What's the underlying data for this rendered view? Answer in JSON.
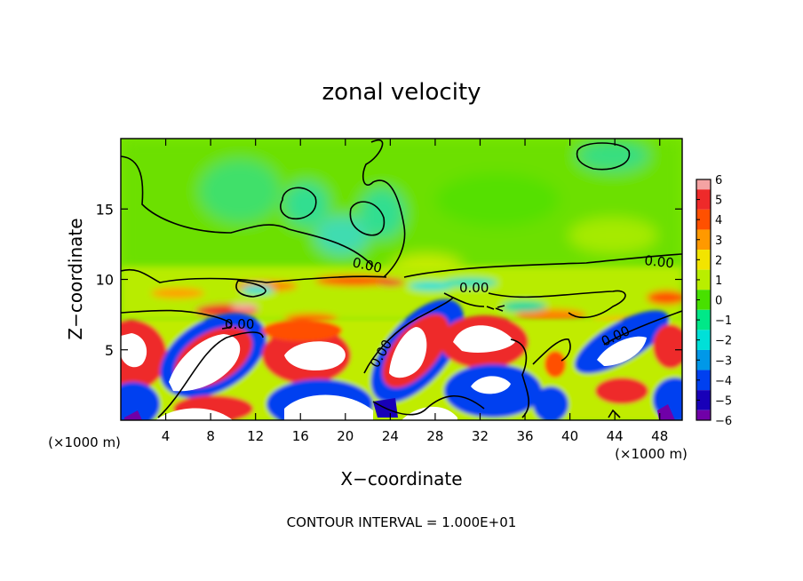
{
  "chart_data": {
    "type": "heatmap",
    "title": "zonal velocity",
    "xlabel": "X−coordinate",
    "ylabel": "Z−coordinate",
    "x_units_left": "(×1000 m)",
    "x_units_right": "(×1000 m)",
    "footer": "CONTOUR INTERVAL = 1.000E+01",
    "xlim": [
      0,
      50
    ],
    "ylim": [
      0,
      20
    ],
    "x_ticks": [
      4,
      8,
      12,
      16,
      20,
      24,
      28,
      32,
      36,
      40,
      44,
      48
    ],
    "x_tick_labels": [
      "4",
      "8",
      "12",
      "16",
      "20",
      "24",
      "28",
      "32",
      "36",
      "40",
      "44",
      "48"
    ],
    "y_ticks": [
      5,
      10,
      15
    ],
    "y_tick_labels": [
      "5",
      "10",
      "15"
    ],
    "grid": false,
    "colorbar": {
      "position": "right",
      "levels": [
        6,
        5,
        4,
        3,
        2,
        1,
        0,
        -1,
        -2,
        -3,
        -4,
        -5,
        -6
      ],
      "labels": [
        "6",
        "5",
        "4",
        "3",
        "2",
        "1",
        "0",
        "−1",
        "−2",
        "−3",
        "−4",
        "−5",
        "−6"
      ],
      "colors": [
        "#f4a3a3",
        "#ee2a2a",
        "#ff5000",
        "#ff9900",
        "#f2e400",
        "#b9ee00",
        "#48e000",
        "#00e888",
        "#00e0d8",
        "#0098e8",
        "#0040f0",
        "#1800b8",
        "#7000a8"
      ]
    },
    "contour_labels": [
      "0.00",
      "0.00",
      "0.00",
      "0.00",
      "0.00",
      "0.00"
    ],
    "regions": [
      {
        "kind": "upper-flow",
        "value": 0.6
      },
      {
        "kind": "upper-cyan-patch",
        "value": -1.5
      },
      {
        "kind": "shear-layer-red",
        "value": 3.5
      },
      {
        "kind": "lower-cell-positive",
        "value": 7
      },
      {
        "kind": "lower-cell-negative",
        "value": -4.5
      }
    ]
  }
}
